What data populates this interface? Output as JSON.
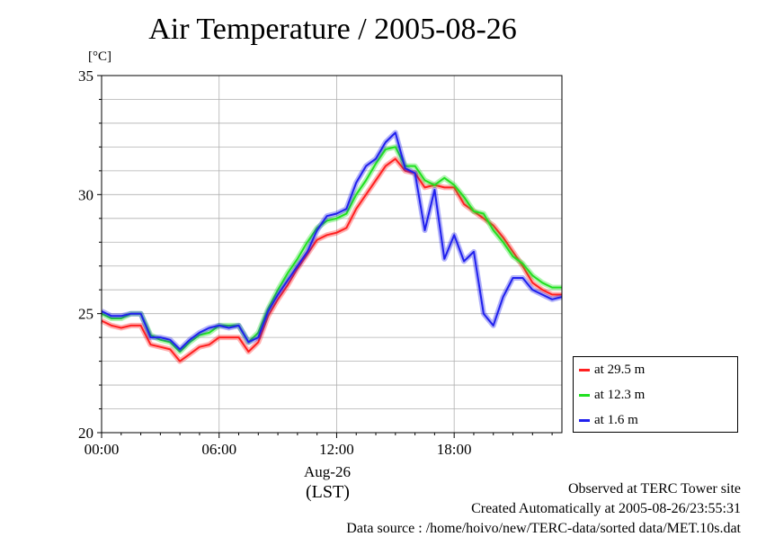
{
  "title": "Air Temperature / 2005-08-26",
  "unit": "[°C]",
  "date_label": "Aug-26",
  "tz_label": "(LST)",
  "footer": {
    "line1": "Observed at TERC Tower site",
    "line2": "Created Automatically at 2005-08-26/23:55:31",
    "line3": "Data source : /home/hoivo/new/TERC-data/sorted  data/MET.10s.dat"
  },
  "colors": {
    "red": "#ff2020",
    "green": "#20e020",
    "blue": "#2020ee"
  },
  "chart_data": {
    "type": "line",
    "title": "Air Temperature / 2005-08-26",
    "ylabel": "[°C]",
    "xlabel": "(LST)",
    "xlim": [
      0,
      23.5
    ],
    "ylim": [
      20,
      35
    ],
    "x_ticks": [
      0,
      6,
      12,
      18
    ],
    "x_tick_labels": [
      "00:00",
      "06:00",
      "12:00",
      "18:00"
    ],
    "y_ticks": [
      20,
      25,
      30,
      35
    ],
    "y_tick_labels": [
      "20",
      "25",
      "30",
      "35"
    ],
    "grid": true,
    "legend_position": "lower-right outside",
    "x": [
      0,
      0.5,
      1,
      1.5,
      2,
      2.5,
      3,
      3.5,
      4,
      4.5,
      5,
      5.5,
      6,
      6.5,
      7,
      7.5,
      8,
      8.5,
      9,
      9.5,
      10,
      10.5,
      11,
      11.5,
      12,
      12.5,
      13,
      13.5,
      14,
      14.5,
      15,
      15.5,
      16,
      16.5,
      17,
      17.5,
      18,
      18.5,
      19,
      19.5,
      20,
      20.5,
      21,
      21.5,
      22,
      22.5,
      23,
      23.5
    ],
    "series": [
      {
        "name": "at 29.5 m",
        "color": "#ff2020",
        "values": [
          24.7,
          24.5,
          24.4,
          24.5,
          24.5,
          23.7,
          23.6,
          23.5,
          23.0,
          23.3,
          23.6,
          23.7,
          24.0,
          24.0,
          24.0,
          23.4,
          23.8,
          24.9,
          25.6,
          26.2,
          26.9,
          27.5,
          28.1,
          28.3,
          28.4,
          28.6,
          29.4,
          30.0,
          30.6,
          31.2,
          31.5,
          31.0,
          30.9,
          30.3,
          30.4,
          30.3,
          30.3,
          29.6,
          29.3,
          29.0,
          28.7,
          28.2,
          27.6,
          27.0,
          26.3,
          26.0,
          25.8,
          25.8
        ]
      },
      {
        "name": "at 12.3 m",
        "color": "#20e020",
        "values": [
          25.0,
          24.8,
          24.8,
          25.0,
          25.0,
          24.1,
          23.9,
          23.8,
          23.4,
          23.8,
          24.1,
          24.2,
          24.5,
          24.5,
          24.5,
          23.8,
          24.2,
          25.2,
          26.0,
          26.7,
          27.3,
          28.0,
          28.6,
          28.9,
          29.0,
          29.2,
          30.0,
          30.6,
          31.3,
          31.9,
          32.0,
          31.2,
          31.2,
          30.6,
          30.4,
          30.7,
          30.4,
          29.9,
          29.3,
          29.2,
          28.5,
          28.0,
          27.4,
          27.1,
          26.6,
          26.3,
          26.1,
          26.1
        ]
      },
      {
        "name": "at 1.6 m",
        "color": "#2020ee",
        "values": [
          25.1,
          24.9,
          24.9,
          25.0,
          25.0,
          24.0,
          24.0,
          23.9,
          23.5,
          23.9,
          24.2,
          24.4,
          24.5,
          24.4,
          24.5,
          23.8,
          24.0,
          25.1,
          25.8,
          26.4,
          27.0,
          27.6,
          28.5,
          29.1,
          29.2,
          29.4,
          30.5,
          31.2,
          31.5,
          32.2,
          32.6,
          31.1,
          30.9,
          28.5,
          30.2,
          27.3,
          28.3,
          27.2,
          27.6,
          25.0,
          24.5,
          25.7,
          26.5,
          26.5,
          26.0,
          25.8,
          25.6,
          25.7
        ]
      }
    ]
  }
}
